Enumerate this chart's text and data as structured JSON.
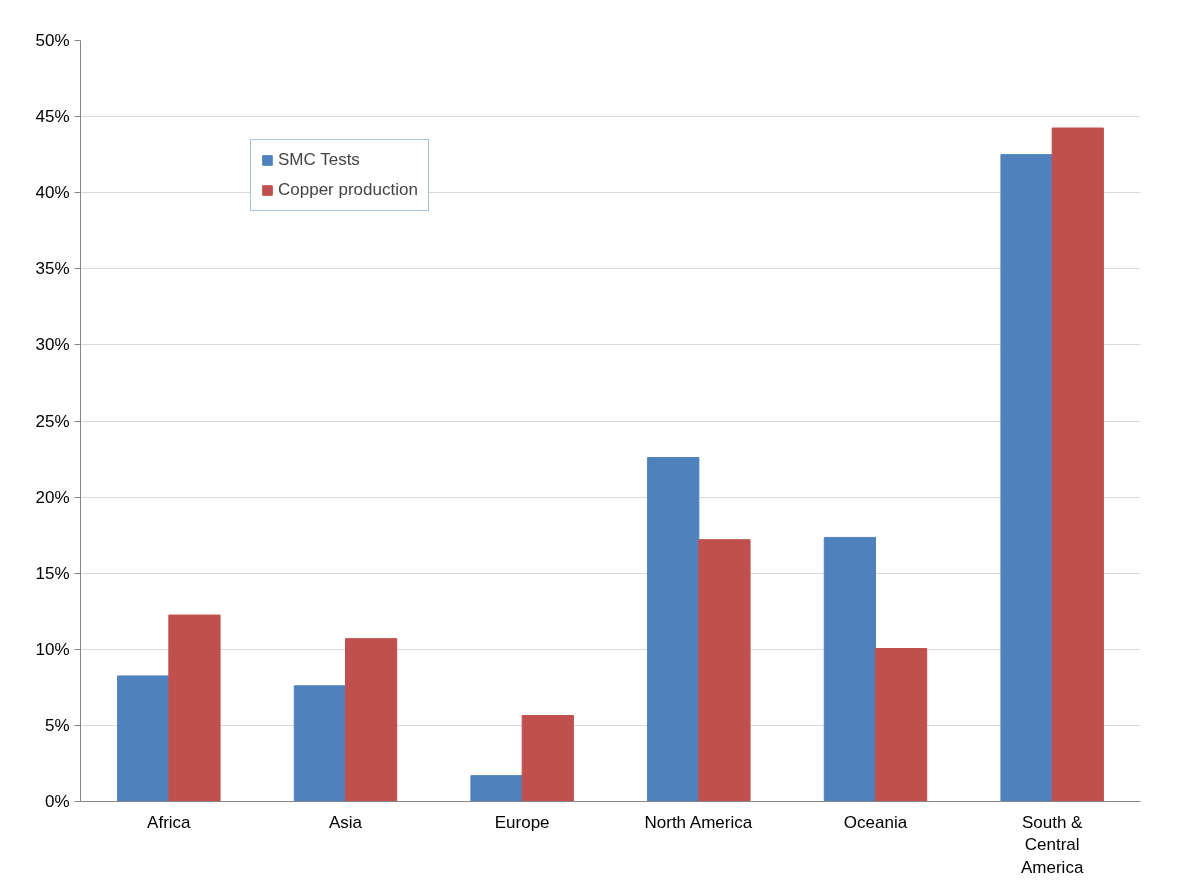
{
  "chart_data": {
    "type": "bar",
    "categories": [
      "Africa",
      "Asia",
      "Europe",
      "North America",
      "Oceania",
      "South & Central America"
    ],
    "series": [
      {
        "name": "SMC Tests",
        "color": "#4f81bd",
        "values": [
          8.25,
          7.6,
          1.7,
          22.6,
          17.35,
          42.5
        ]
      },
      {
        "name": "Copper production",
        "color": "#c0504d",
        "values": [
          12.25,
          10.7,
          5.65,
          17.2,
          10.05,
          44.25
        ]
      }
    ],
    "ylim": [
      0,
      50
    ],
    "yticks": [
      {
        "value": 0,
        "label": "0%"
      },
      {
        "value": 5,
        "label": "5%"
      },
      {
        "value": 10,
        "label": "10%"
      },
      {
        "value": 15,
        "label": "15%"
      },
      {
        "value": 20,
        "label": "20%"
      },
      {
        "value": 25,
        "label": "25%"
      },
      {
        "value": 30,
        "label": "30%"
      },
      {
        "value": 35,
        "label": "35%"
      },
      {
        "value": 40,
        "label": "40%"
      },
      {
        "value": 45,
        "label": "45%"
      },
      {
        "value": 50,
        "label": "50%"
      }
    ],
    "grid": "y",
    "legend": "top left"
  }
}
